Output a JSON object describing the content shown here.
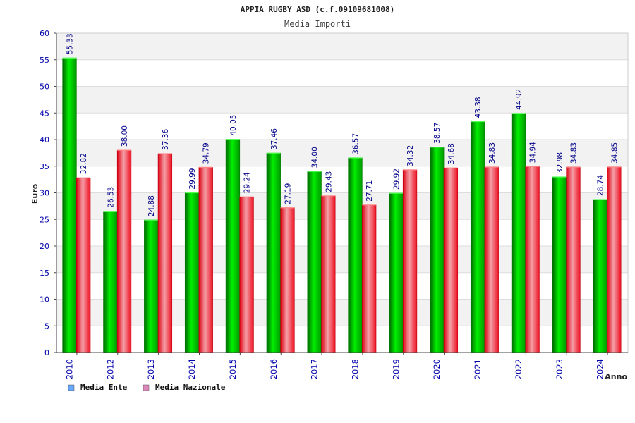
{
  "chart_data": {
    "type": "bar",
    "title": "APPIA RUGBY ASD (c.f.09109681008)",
    "subtitle": "Media Importi",
    "xlabel": "Anno",
    "ylabel": "Euro",
    "ylim": [
      0,
      60
    ],
    "ytick_step": 5,
    "categories": [
      "2010",
      "2012",
      "2013",
      "2014",
      "2015",
      "2016",
      "2017",
      "2018",
      "2019",
      "2020",
      "2021",
      "2022",
      "2023",
      "2024"
    ],
    "series": [
      {
        "name": "Media Ente",
        "color": "#00cc00",
        "legend_color": "#66aaff",
        "values": [
          55.33,
          26.53,
          24.88,
          29.99,
          40.05,
          37.46,
          34.0,
          36.57,
          29.92,
          38.57,
          43.38,
          44.92,
          32.98,
          28.74
        ],
        "labels": [
          "55.33",
          "26.53",
          "24.88",
          "29.99",
          "40.05",
          "37.46",
          "34.00",
          "36.57",
          "29.92",
          "38.57",
          "43.38",
          "44.92",
          "32.98",
          "28.74"
        ]
      },
      {
        "name": "Media Nazionale",
        "color": "#ee2233",
        "legend_color": "#dd88bb",
        "values": [
          32.82,
          38.0,
          37.36,
          34.79,
          29.24,
          27.19,
          29.43,
          27.71,
          34.32,
          34.68,
          34.83,
          34.94,
          34.83,
          34.85
        ],
        "labels": [
          "32.82",
          "38.00",
          "37.36",
          "34.79",
          "29.24",
          "27.19",
          "29.43",
          "27.71",
          "34.32",
          "34.68",
          "34.83",
          "34.94",
          "34.83",
          "34.85"
        ]
      }
    ],
    "legend_position": "bottom-left",
    "grid": true
  }
}
